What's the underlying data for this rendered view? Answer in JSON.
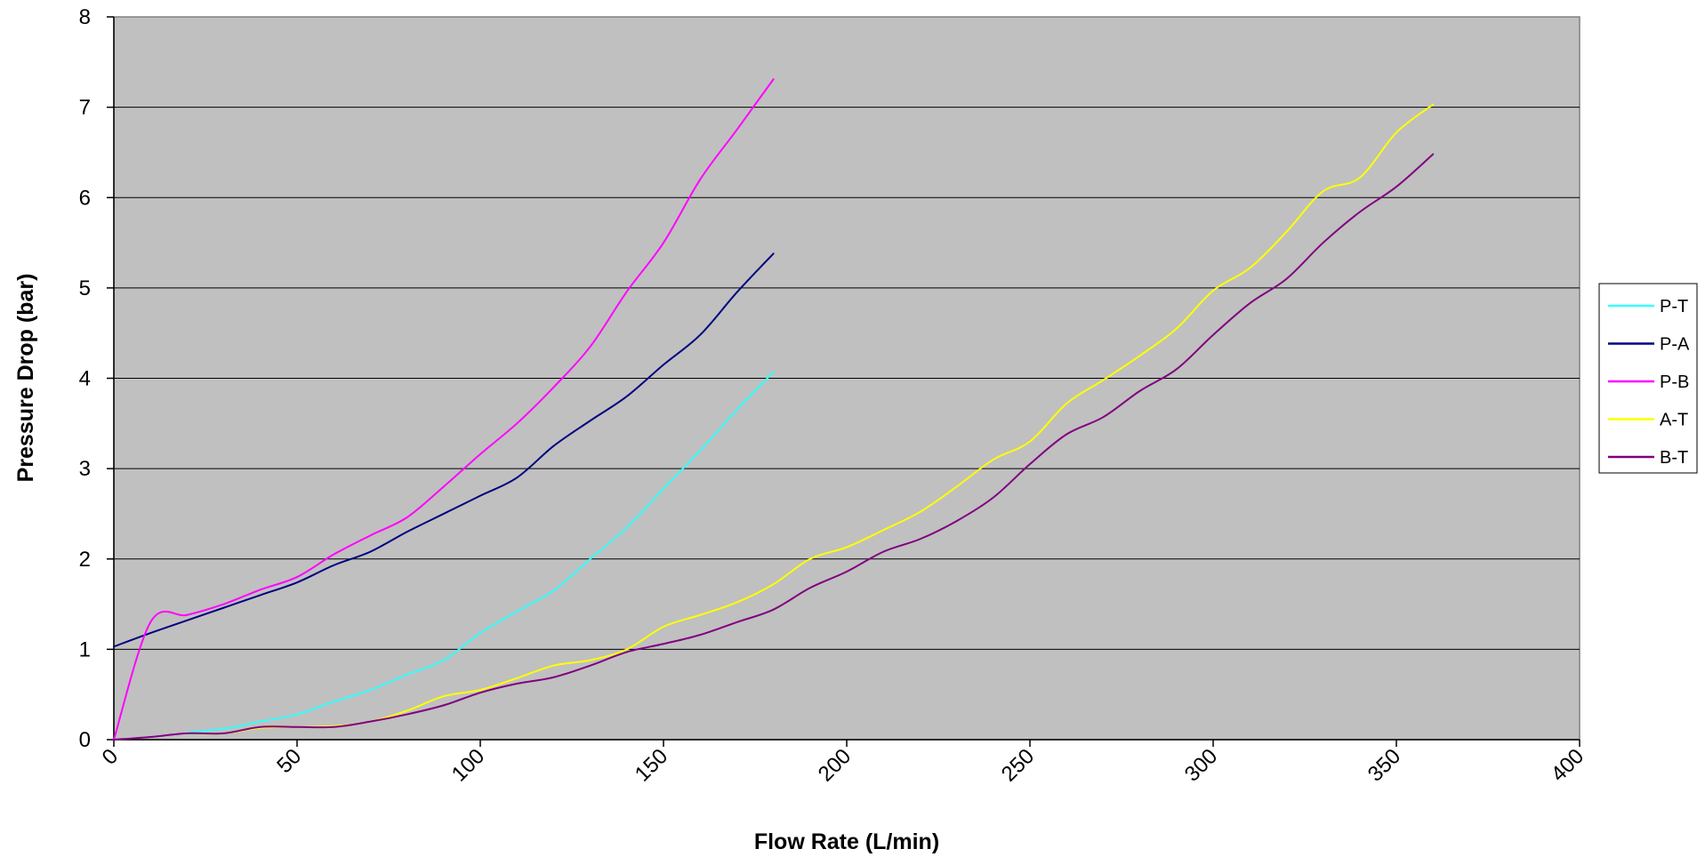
{
  "chart_data": {
    "type": "line",
    "title": "",
    "xlabel": "Flow Rate (L/min)",
    "ylabel": "Pressure Drop (bar)",
    "xlim": [
      0,
      400
    ],
    "ylim": [
      0,
      8
    ],
    "x_ticks": [
      "0",
      "50",
      "100",
      "150",
      "200",
      "250",
      "300",
      "350",
      "400"
    ],
    "y_ticks": [
      "0",
      "1",
      "2",
      "3",
      "4",
      "5",
      "6",
      "7",
      "8"
    ],
    "grid": "horizontal",
    "plot_background": "#c0c0c0",
    "legend_position": "right",
    "series": [
      {
        "name": "P-T",
        "color": "#33ffff",
        "points": [
          [
            20,
            0.08
          ],
          [
            30,
            0.12
          ],
          [
            40,
            0.2
          ],
          [
            50,
            0.28
          ],
          [
            60,
            0.42
          ],
          [
            70,
            0.55
          ],
          [
            80,
            0.72
          ],
          [
            90,
            0.88
          ],
          [
            100,
            1.18
          ],
          [
            110,
            1.42
          ],
          [
            120,
            1.65
          ],
          [
            130,
            2.0
          ],
          [
            140,
            2.35
          ],
          [
            150,
            2.78
          ],
          [
            160,
            3.2
          ],
          [
            170,
            3.65
          ],
          [
            180,
            4.07
          ]
        ]
      },
      {
        "name": "P-A",
        "color": "#000080",
        "points": [
          [
            0,
            1.03
          ],
          [
            10,
            1.18
          ],
          [
            20,
            1.32
          ],
          [
            30,
            1.46
          ],
          [
            40,
            1.6
          ],
          [
            50,
            1.74
          ],
          [
            60,
            1.93
          ],
          [
            70,
            2.08
          ],
          [
            80,
            2.3
          ],
          [
            90,
            2.5
          ],
          [
            100,
            2.7
          ],
          [
            110,
            2.9
          ],
          [
            120,
            3.25
          ],
          [
            130,
            3.53
          ],
          [
            140,
            3.8
          ],
          [
            150,
            4.15
          ],
          [
            160,
            4.48
          ],
          [
            170,
            4.95
          ],
          [
            180,
            5.38
          ]
        ]
      },
      {
        "name": "P-B",
        "color": "#ff00ff",
        "points": [
          [
            0,
            0
          ],
          [
            10,
            1.3
          ],
          [
            20,
            1.38
          ],
          [
            30,
            1.5
          ],
          [
            40,
            1.66
          ],
          [
            50,
            1.8
          ],
          [
            60,
            2.05
          ],
          [
            70,
            2.26
          ],
          [
            80,
            2.46
          ],
          [
            90,
            2.8
          ],
          [
            100,
            3.16
          ],
          [
            110,
            3.5
          ],
          [
            120,
            3.9
          ],
          [
            130,
            4.35
          ],
          [
            140,
            4.96
          ],
          [
            150,
            5.5
          ],
          [
            160,
            6.2
          ],
          [
            170,
            6.75
          ],
          [
            180,
            7.31
          ]
        ]
      },
      {
        "name": "A-T",
        "color": "#ffff00",
        "points": [
          [
            20,
            0.07
          ],
          [
            30,
            0.07
          ],
          [
            40,
            0.13
          ],
          [
            50,
            0.14
          ],
          [
            60,
            0.15
          ],
          [
            70,
            0.2
          ],
          [
            80,
            0.32
          ],
          [
            90,
            0.48
          ],
          [
            100,
            0.55
          ],
          [
            110,
            0.68
          ],
          [
            120,
            0.82
          ],
          [
            130,
            0.88
          ],
          [
            140,
            1.0
          ],
          [
            150,
            1.25
          ],
          [
            160,
            1.38
          ],
          [
            170,
            1.52
          ],
          [
            180,
            1.72
          ],
          [
            190,
            2.0
          ],
          [
            200,
            2.13
          ],
          [
            210,
            2.32
          ],
          [
            220,
            2.52
          ],
          [
            230,
            2.8
          ],
          [
            240,
            3.1
          ],
          [
            250,
            3.3
          ],
          [
            260,
            3.72
          ],
          [
            270,
            3.98
          ],
          [
            280,
            4.25
          ],
          [
            290,
            4.55
          ],
          [
            300,
            4.97
          ],
          [
            310,
            5.22
          ],
          [
            320,
            5.62
          ],
          [
            330,
            6.07
          ],
          [
            340,
            6.22
          ],
          [
            350,
            6.72
          ],
          [
            360,
            7.03
          ]
        ]
      },
      {
        "name": "B-T",
        "color": "#800080",
        "points": [
          [
            0,
            0
          ],
          [
            10,
            0.03
          ],
          [
            20,
            0.07
          ],
          [
            30,
            0.07
          ],
          [
            40,
            0.14
          ],
          [
            50,
            0.14
          ],
          [
            60,
            0.14
          ],
          [
            70,
            0.2
          ],
          [
            80,
            0.28
          ],
          [
            90,
            0.38
          ],
          [
            100,
            0.52
          ],
          [
            110,
            0.62
          ],
          [
            120,
            0.69
          ],
          [
            130,
            0.82
          ],
          [
            140,
            0.97
          ],
          [
            150,
            1.06
          ],
          [
            160,
            1.16
          ],
          [
            170,
            1.3
          ],
          [
            180,
            1.44
          ],
          [
            190,
            1.68
          ],
          [
            200,
            1.86
          ],
          [
            210,
            2.08
          ],
          [
            220,
            2.22
          ],
          [
            230,
            2.42
          ],
          [
            240,
            2.68
          ],
          [
            250,
            3.05
          ],
          [
            260,
            3.38
          ],
          [
            270,
            3.57
          ],
          [
            280,
            3.86
          ],
          [
            290,
            4.1
          ],
          [
            300,
            4.48
          ],
          [
            310,
            4.83
          ],
          [
            320,
            5.1
          ],
          [
            330,
            5.5
          ],
          [
            340,
            5.84
          ],
          [
            350,
            6.12
          ],
          [
            360,
            6.48
          ]
        ]
      }
    ]
  }
}
